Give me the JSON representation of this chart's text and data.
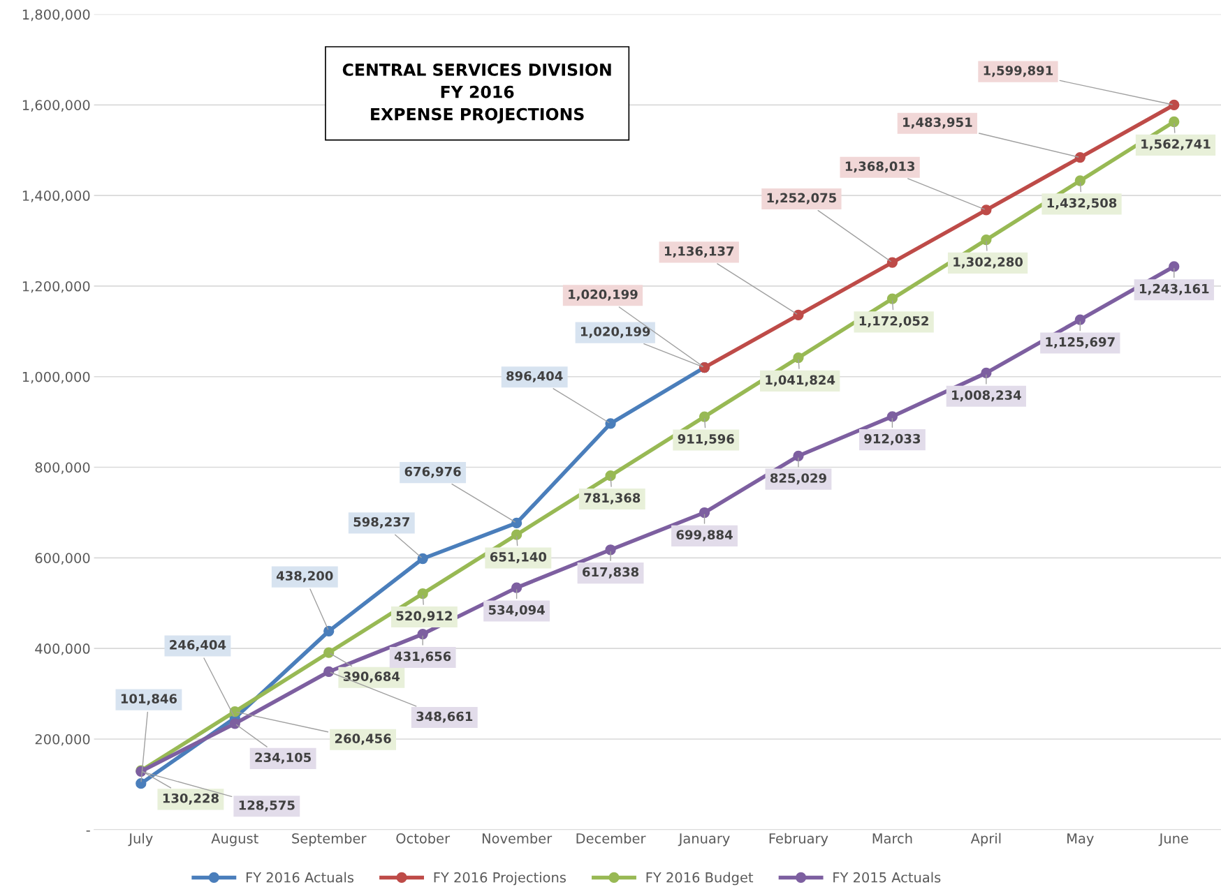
{
  "chart_data": {
    "type": "line",
    "title": "CENTRAL SERVICES DIVISION\nFY 2016\nEXPENSE PROJECTIONS",
    "categories": [
      "July",
      "August",
      "September",
      "October",
      "November",
      "December",
      "January",
      "February",
      "March",
      "April",
      "May",
      "June"
    ],
    "series": [
      {
        "name": "FY 2016 Actuals",
        "color": "#4a7ebb",
        "values": [
          101846,
          246404,
          438200,
          598237,
          676976,
          896404,
          1020199,
          null,
          null,
          null,
          null,
          null
        ],
        "value_labels": [
          "101,846",
          "246,404",
          "438,200",
          "598,237",
          "676,976",
          "896,404",
          "1,020,199",
          null,
          null,
          null,
          null,
          null
        ]
      },
      {
        "name": "FY 2016 Projections",
        "color": "#be4b48",
        "values": [
          null,
          null,
          null,
          null,
          null,
          null,
          1020199,
          1136137,
          1252075,
          1368013,
          1483951,
          1599891
        ],
        "value_labels": [
          null,
          null,
          null,
          null,
          null,
          null,
          "1,020,199",
          "1,136,137",
          "1,252,075",
          "1,368,013",
          "1,483,951",
          "1,599,891"
        ]
      },
      {
        "name": "FY 2016 Budget",
        "color": "#98b954",
        "values": [
          130228,
          260456,
          390684,
          520912,
          651140,
          781368,
          911596,
          1041824,
          1172052,
          1302280,
          1432508,
          1562741
        ],
        "value_labels": [
          "130,228",
          "260,456",
          "390,684",
          "520,912",
          "651,140",
          "781,368",
          "911,596",
          "1,041,824",
          "1,172,052",
          "1,302,280",
          "1,432,508",
          "1,562,741"
        ]
      },
      {
        "name": "FY 2015 Actuals",
        "color": "#7d5fa0",
        "values": [
          128575,
          234105,
          348661,
          431656,
          534094,
          617838,
          699884,
          825029,
          912033,
          1008234,
          1125697,
          1243161
        ],
        "value_labels": [
          "128,575",
          "234,105",
          "348,661",
          "431,656",
          "534,094",
          "617,838",
          "699,884",
          "825,029",
          "912,033",
          "1,008,234",
          "1,125,697",
          "1,243,161"
        ]
      }
    ],
    "ylim": [
      0,
      1800000
    ],
    "yticks": [
      {
        "value": 0,
        "label": "-"
      },
      {
        "value": 200000,
        "label": "200,000"
      },
      {
        "value": 400000,
        "label": "400,000"
      },
      {
        "value": 600000,
        "label": "600,000"
      },
      {
        "value": 800000,
        "label": "800,000"
      },
      {
        "value": 1000000,
        "label": "1,000,000"
      },
      {
        "value": 1200000,
        "label": "1,200,000"
      },
      {
        "value": 1400000,
        "label": "1,400,000"
      },
      {
        "value": 1600000,
        "label": "1,600,000"
      },
      {
        "value": 1800000,
        "label": "1,800,000"
      }
    ],
    "grid": "y",
    "legend": "bottom",
    "marker": "circle",
    "line_style": "solid"
  }
}
